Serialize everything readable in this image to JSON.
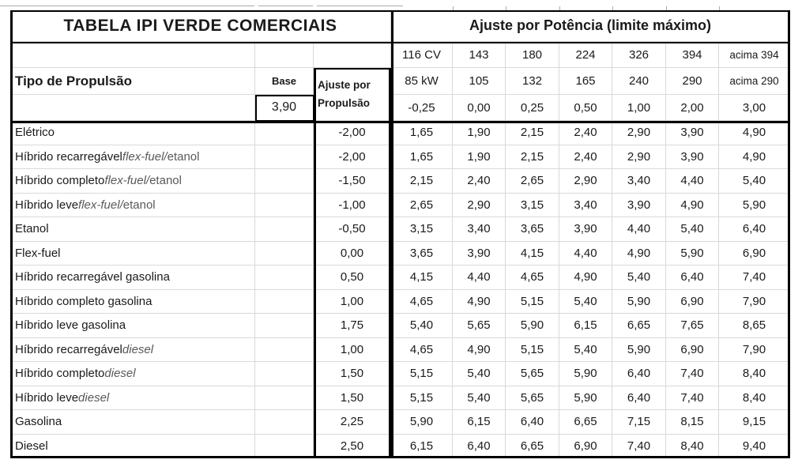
{
  "colors": {
    "border_black": "#000000",
    "gridline_gray": "#d9d9d9",
    "primary_text": "#1a1a1a",
    "secondary_text": "#595959",
    "background": "#ffffff"
  },
  "table": {
    "title_left": "TABELA IPI VERDE COMERCIAIS",
    "title_right": "Ajuste por Potência (limite máximo)",
    "propulsion_header": "Tipo de Propulsão",
    "base_label": "Base",
    "base_value": "3,90",
    "adjust_col_label": [
      "Ajuste por",
      "Propulsão"
    ],
    "power_cv": [
      "116 CV",
      "143",
      "180",
      "224",
      "326",
      "394",
      "acima 394"
    ],
    "power_kw": [
      "85 kW",
      "105",
      "132",
      "165",
      "240",
      "290",
      "acima 290"
    ],
    "power_adjust": [
      "-0,25",
      "0,00",
      "0,25",
      "0,50",
      "1,00",
      "2,00",
      "3,00"
    ],
    "rows": [
      {
        "label_parts": [
          {
            "t": "Elétrico",
            "s": "dark"
          }
        ],
        "adjust": "-2,00",
        "values": [
          "1,65",
          "1,90",
          "2,15",
          "2,40",
          "2,90",
          "3,90",
          "4,90"
        ]
      },
      {
        "label_parts": [
          {
            "t": "Híbrido recarregável ",
            "s": "dark"
          },
          {
            "t": "flex-fuel/",
            "s": "gray-italic"
          },
          {
            "t": " etanol",
            "s": "gray"
          }
        ],
        "adjust": "-2,00",
        "values": [
          "1,65",
          "1,90",
          "2,15",
          "2,40",
          "2,90",
          "3,90",
          "4,90"
        ]
      },
      {
        "label_parts": [
          {
            "t": "Híbrido completo ",
            "s": "dark"
          },
          {
            "t": "flex-fuel/",
            "s": "gray-italic"
          },
          {
            "t": "etanol",
            "s": "gray"
          }
        ],
        "adjust": "-1,50",
        "values": [
          "2,15",
          "2,40",
          "2,65",
          "2,90",
          "3,40",
          "4,40",
          "5,40"
        ]
      },
      {
        "label_parts": [
          {
            "t": "Híbrido leve ",
            "s": "dark"
          },
          {
            "t": "flex-fuel/",
            "s": "gray-italic"
          },
          {
            "t": " etanol",
            "s": "gray"
          }
        ],
        "adjust": "-1,00",
        "values": [
          "2,65",
          "2,90",
          "3,15",
          "3,40",
          "3,90",
          "4,90",
          "5,90"
        ]
      },
      {
        "label_parts": [
          {
            "t": "Etanol",
            "s": "dark"
          }
        ],
        "adjust": "-0,50",
        "values": [
          "3,15",
          "3,40",
          "3,65",
          "3,90",
          "4,40",
          "5,40",
          "6,40"
        ]
      },
      {
        "label_parts": [
          {
            "t": "Flex-fuel",
            "s": "dark"
          }
        ],
        "adjust": "0,00",
        "values": [
          "3,65",
          "3,90",
          "4,15",
          "4,40",
          "4,90",
          "5,90",
          "6,90"
        ]
      },
      {
        "label_parts": [
          {
            "t": "Híbrido recarregável gasolina",
            "s": "dark"
          }
        ],
        "adjust": "0,50",
        "values": [
          "4,15",
          "4,40",
          "4,65",
          "4,90",
          "5,40",
          "6,40",
          "7,40"
        ]
      },
      {
        "label_parts": [
          {
            "t": "Híbrido completo gasolina",
            "s": "dark"
          }
        ],
        "adjust": "1,00",
        "values": [
          "4,65",
          "4,90",
          "5,15",
          "5,40",
          "5,90",
          "6,90",
          "7,90"
        ]
      },
      {
        "label_parts": [
          {
            "t": "Híbrido leve gasolina",
            "s": "dark"
          }
        ],
        "adjust": "1,75",
        "values": [
          "5,40",
          "5,65",
          "5,90",
          "6,15",
          "6,65",
          "7,65",
          "8,65"
        ]
      },
      {
        "label_parts": [
          {
            "t": "Híbrido recarregável ",
            "s": "dark"
          },
          {
            "t": "diesel",
            "s": "gray-italic"
          }
        ],
        "adjust": "1,00",
        "values": [
          "4,65",
          "4,90",
          "5,15",
          "5,40",
          "5,90",
          "6,90",
          "7,90"
        ]
      },
      {
        "label_parts": [
          {
            "t": "Híbrido completo ",
            "s": "dark"
          },
          {
            "t": "diesel",
            "s": "gray-italic"
          }
        ],
        "adjust": "1,50",
        "values": [
          "5,15",
          "5,40",
          "5,65",
          "5,90",
          "6,40",
          "7,40",
          "8,40"
        ]
      },
      {
        "label_parts": [
          {
            "t": "Híbrido leve ",
            "s": "dark"
          },
          {
            "t": "diesel",
            "s": "gray-italic"
          }
        ],
        "adjust": "1,50",
        "values": [
          "5,15",
          "5,40",
          "5,65",
          "5,90",
          "6,40",
          "7,40",
          "8,40"
        ]
      },
      {
        "label_parts": [
          {
            "t": "Gasolina",
            "s": "dark"
          }
        ],
        "adjust": "2,25",
        "values": [
          "5,90",
          "6,15",
          "6,40",
          "6,65",
          "7,15",
          "8,15",
          "9,15"
        ]
      },
      {
        "label_parts": [
          {
            "t": "Diesel",
            "s": "dark"
          }
        ],
        "adjust": "2,50",
        "values": [
          "6,15",
          "6,40",
          "6,65",
          "6,90",
          "7,40",
          "8,40",
          "9,40"
        ]
      }
    ]
  }
}
